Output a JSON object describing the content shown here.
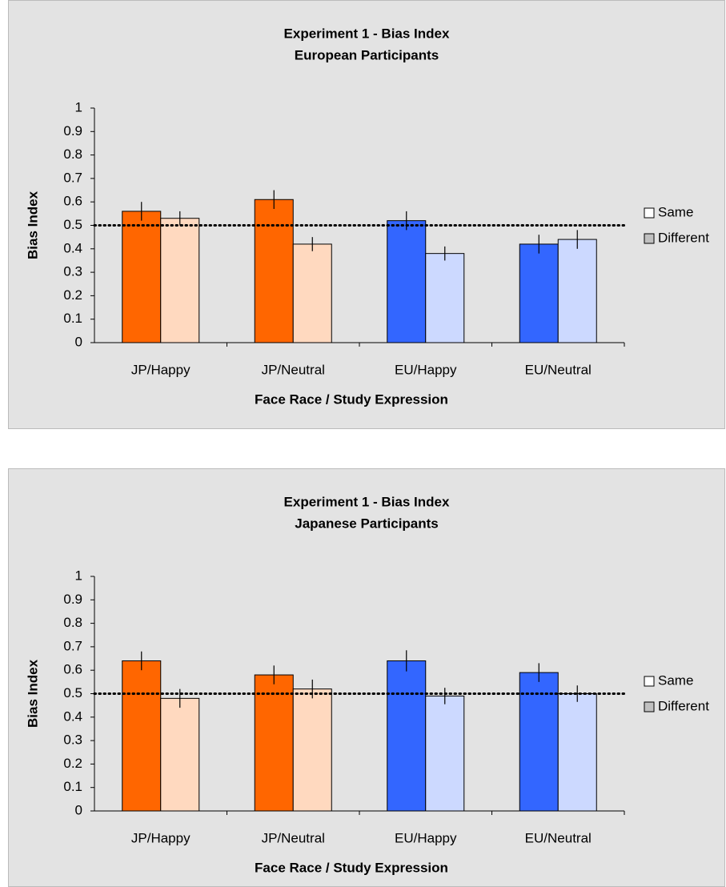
{
  "chart_data": [
    {
      "type": "bar",
      "title": "Experiment 1 - Bias Index",
      "subtitle": "European Participants",
      "xlabel": "Face Race / Study Expression",
      "ylabel": "Bias Index",
      "categories": [
        "JP/Happy",
        "JP/Neutral",
        "EU/Happy",
        "EU/Neutral"
      ],
      "series": [
        {
          "name": "Same",
          "color": "#ffffff",
          "colors": [
            "#ff6600",
            "#ff6600",
            "#3366ff",
            "#3366ff"
          ],
          "values": [
            0.56,
            0.61,
            0.52,
            0.42
          ],
          "errors": [
            0.04,
            0.04,
            0.04,
            0.04
          ]
        },
        {
          "name": "Different",
          "color": "#c0c0c0",
          "colors": [
            "#ffd9bf",
            "#ffd9bf",
            "#ccd9ff",
            "#ccd9ff"
          ],
          "values": [
            0.53,
            0.42,
            0.38,
            0.44
          ],
          "errors": [
            0.03,
            0.03,
            0.03,
            0.04
          ]
        }
      ],
      "reference_line": 0.5,
      "ylim": [
        0,
        1
      ],
      "yticks": [
        0,
        0.1,
        0.2,
        0.3,
        0.4,
        0.5,
        0.6,
        0.7,
        0.8,
        0.9,
        1
      ],
      "legend": "right"
    },
    {
      "type": "bar",
      "title": "Experiment 1 - Bias Index",
      "subtitle": "Japanese Participants",
      "xlabel": "Face Race / Study Expression",
      "ylabel": "Bias Index",
      "categories": [
        "JP/Happy",
        "JP/Neutral",
        "EU/Happy",
        "EU/Neutral"
      ],
      "series": [
        {
          "name": "Same",
          "color": "#ffffff",
          "colors": [
            "#ff6600",
            "#ff6600",
            "#3366ff",
            "#3366ff"
          ],
          "values": [
            0.64,
            0.58,
            0.64,
            0.59
          ],
          "errors": [
            0.04,
            0.04,
            0.045,
            0.04
          ]
        },
        {
          "name": "Different",
          "color": "#c0c0c0",
          "colors": [
            "#ffd9bf",
            "#ffd9bf",
            "#ccd9ff",
            "#ccd9ff"
          ],
          "values": [
            0.48,
            0.52,
            0.49,
            0.5
          ],
          "errors": [
            0.04,
            0.04,
            0.035,
            0.035
          ]
        }
      ],
      "reference_line": 0.5,
      "ylim": [
        0,
        1
      ],
      "yticks": [
        0,
        0.1,
        0.2,
        0.3,
        0.4,
        0.5,
        0.6,
        0.7,
        0.8,
        0.9,
        1
      ],
      "legend": "right"
    }
  ]
}
